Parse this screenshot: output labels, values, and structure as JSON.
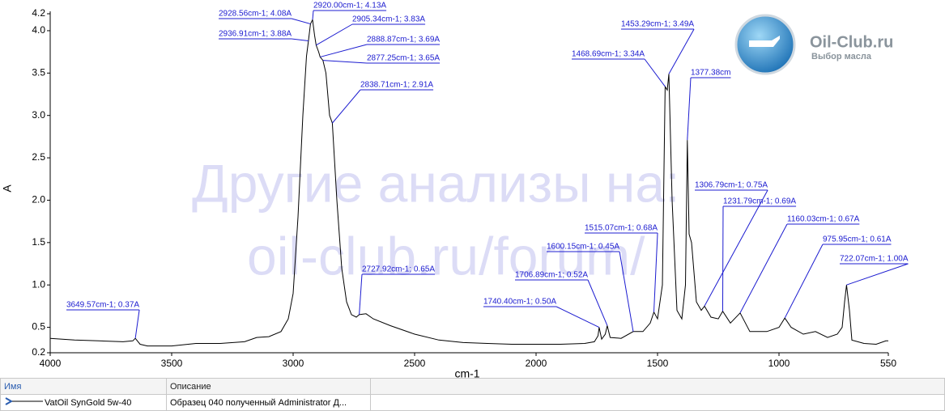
{
  "chart_data": {
    "type": "line",
    "x_label": "cm-1",
    "y_label": "A",
    "xlim": [
      4000,
      550
    ],
    "xticks": [
      4000,
      3500,
      3000,
      2500,
      2000,
      1500,
      1000,
      550
    ],
    "ylim": [
      0.2,
      4.2
    ],
    "yticks": [
      0.2,
      0.5,
      {
        "value": 1,
        "label": "1.0"
      },
      1.5,
      {
        "value": 2,
        "label": "2.0"
      },
      2.5,
      {
        "value": 3,
        "label": "3.0"
      },
      3.5,
      {
        "value": 4,
        "label": "4.0"
      },
      4.2
    ],
    "x": [
      4000,
      3900,
      3800,
      3700,
      3660,
      3649.57,
      3630,
      3600,
      3500,
      3400,
      3300,
      3200,
      3150,
      3100,
      3050,
      3020,
      3000,
      2980,
      2960,
      2945,
      2936.91,
      2928.56,
      2920,
      2912,
      2905.34,
      2895,
      2888.87,
      2877.25,
      2865,
      2850,
      2838.71,
      2820,
      2800,
      2780,
      2760,
      2740,
      2727.92,
      2700,
      2670,
      2600,
      2500,
      2400,
      2300,
      2200,
      2100,
      2000,
      1900,
      1800,
      1760,
      1745,
      1740.4,
      1730,
      1715,
      1706.89,
      1695,
      1650,
      1600.15,
      1560,
      1530,
      1515.07,
      1500,
      1480,
      1468.69,
      1460,
      1453.29,
      1440,
      1420,
      1400,
      1385,
      1377.38,
      1370,
      1360,
      1340,
      1320,
      1306.79,
      1280,
      1250,
      1231.79,
      1200,
      1160.03,
      1120,
      1050,
      1000,
      975.95,
      950,
      900,
      850,
      800,
      760,
      740,
      730,
      722.07,
      710,
      700,
      650,
      600,
      560,
      550
    ],
    "series": [
      {
        "name": "VatOil SynGold 5w-40",
        "color": "#000000",
        "values": [
          0.37,
          0.35,
          0.34,
          0.33,
          0.34,
          0.37,
          0.3,
          0.28,
          0.28,
          0.31,
          0.31,
          0.33,
          0.38,
          0.39,
          0.45,
          0.6,
          0.9,
          1.8,
          3.0,
          3.7,
          3.88,
          4.08,
          4.13,
          3.95,
          3.83,
          3.75,
          3.69,
          3.65,
          3.5,
          3.0,
          2.91,
          2.0,
          1.2,
          0.8,
          0.65,
          0.62,
          0.65,
          0.66,
          0.6,
          0.52,
          0.42,
          0.35,
          0.32,
          0.31,
          0.3,
          0.3,
          0.3,
          0.31,
          0.33,
          0.4,
          0.5,
          0.36,
          0.42,
          0.52,
          0.38,
          0.37,
          0.45,
          0.45,
          0.55,
          0.68,
          0.6,
          1.0,
          3.34,
          3.3,
          3.49,
          2.0,
          0.7,
          0.6,
          1.0,
          2.71,
          1.6,
          1.5,
          0.8,
          0.7,
          0.75,
          0.62,
          0.6,
          0.69,
          0.55,
          0.67,
          0.45,
          0.45,
          0.5,
          0.61,
          0.5,
          0.42,
          0.45,
          0.38,
          0.42,
          0.5,
          0.8,
          1.0,
          0.7,
          0.35,
          0.31,
          0.3,
          0.34,
          0.34
        ]
      }
    ],
    "annotations": [
      {
        "text": "3649.57cm-1; 0.37A",
        "x": 3649.57,
        "y": 0.37
      },
      {
        "text": "2928.56cm-1; 4.08A",
        "x": 2928.56,
        "y": 4.08
      },
      {
        "text": "2920.00cm-1; 4.13A",
        "x": 2920,
        "y": 4.13
      },
      {
        "text": "2905.34cm-1; 3.83A",
        "x": 2905.34,
        "y": 3.83
      },
      {
        "text": "2936.91cm-1; 3.88A",
        "x": 2936.91,
        "y": 3.88
      },
      {
        "text": "2888.87cm-1; 3.69A",
        "x": 2888.87,
        "y": 3.69
      },
      {
        "text": "2877.25cm-1; 3.65A",
        "x": 2877.25,
        "y": 3.65
      },
      {
        "text": "2838.71cm-1; 2.91A",
        "x": 2838.71,
        "y": 2.91
      },
      {
        "text": "2727.92cm-1; 0.65A",
        "x": 2727.92,
        "y": 0.65
      },
      {
        "text": "1453.29cm-1; 3.49A",
        "x": 1453.29,
        "y": 3.49
      },
      {
        "text": "1468.69cm-1; 3.34A",
        "x": 1468.69,
        "y": 3.34
      },
      {
        "text": "1377.38cm",
        "x": 1377.38,
        "y": 2.71
      },
      {
        "text": "1306.79cm-1; 0.75A",
        "x": 1306.79,
        "y": 0.75
      },
      {
        "text": "1231.79cm-1; 0.69A",
        "x": 1231.79,
        "y": 0.69
      },
      {
        "text": "1160.03cm-1; 0.67A",
        "x": 1160.03,
        "y": 0.67
      },
      {
        "text": "975.95cm-1; 0.61A",
        "x": 975.95,
        "y": 0.61
      },
      {
        "text": "722.07cm-1; 1.00A",
        "x": 722.07,
        "y": 1.0
      },
      {
        "text": "1515.07cm-1; 0.68A",
        "x": 1515.07,
        "y": 0.68
      },
      {
        "text": "1600.15cm-1; 0.45A",
        "x": 1600.15,
        "y": 0.45
      },
      {
        "text": "1706.89cm-1; 0.52A",
        "x": 1706.89,
        "y": 0.52
      },
      {
        "text": "1740.40cm-1; 0.50A",
        "x": 1740.4,
        "y": 0.5
      }
    ]
  },
  "watermark": [
    "Другие анализы на:",
    "oil-club.ru/forum/"
  ],
  "logo": {
    "title": "Oil-Club.ru",
    "subtitle": "Выбор масла"
  },
  "table": {
    "headers": [
      "Имя",
      "Описание"
    ],
    "description": "Образец 040 полученный Administrator Д..."
  }
}
